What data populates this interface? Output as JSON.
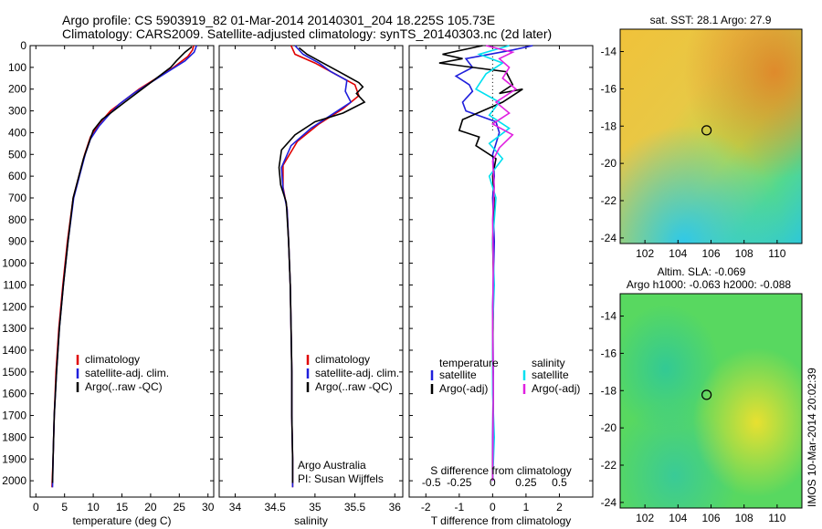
{
  "header": {
    "line1": "Argo profile: CS 5903919_82 01-Mar-2014 20140301_204 18.225S 105.73E",
    "line2": "Climatology: CARS2009. Satellite-adjusted climatology: synTS_20140303.nc (2d later)"
  },
  "side_stamp": "IMOS 10-Mar-2014 20:02:39",
  "colors": {
    "climatology": "#e00000",
    "satellite": "#1f1fdc",
    "argo": "#000000",
    "salinity_satellite": "#00e0f0",
    "salinity_argo": "#e020e0"
  },
  "chart_data": [
    {
      "type": "line",
      "id": "temperature",
      "xlabel": "temperature (deg C)",
      "xlim": [
        -1,
        31
      ],
      "xticks": [
        0,
        5,
        10,
        15,
        20,
        25,
        30
      ],
      "ylim": [
        0,
        2075
      ],
      "yticks": [
        0,
        100,
        200,
        300,
        400,
        500,
        600,
        700,
        800,
        900,
        1000,
        1100,
        1200,
        1300,
        1400,
        1500,
        1600,
        1700,
        1800,
        1900,
        2000
      ],
      "legend": [
        "climatology",
        "satellite-adj. clim.",
        "Argo(..raw -QC)"
      ],
      "series": [
        {
          "name": "climatology",
          "color": "climatology",
          "points": [
            [
              27.5,
              0
            ],
            [
              27.3,
              20
            ],
            [
              26.5,
              50
            ],
            [
              24,
              100
            ],
            [
              21,
              150
            ],
            [
              18,
              200
            ],
            [
              15,
              260
            ],
            [
              13,
              300
            ],
            [
              11,
              360
            ],
            [
              9.5,
              420
            ],
            [
              8.5,
              500
            ],
            [
              7.5,
              600
            ],
            [
              6.5,
              700
            ],
            [
              5.5,
              900
            ],
            [
              4.7,
              1100
            ],
            [
              4,
              1300
            ],
            [
              3.5,
              1500
            ],
            [
              3.2,
              1700
            ],
            [
              3,
              1900
            ],
            [
              2.8,
              2030
            ]
          ]
        },
        {
          "name": "satellite-adj. clim.",
          "color": "satellite",
          "points": [
            [
              28,
              0
            ],
            [
              27.6,
              30
            ],
            [
              26,
              70
            ],
            [
              23,
              120
            ],
            [
              20,
              170
            ],
            [
              17,
              220
            ],
            [
              14.5,
              270
            ],
            [
              13,
              310
            ],
            [
              11,
              370
            ],
            [
              9.5,
              430
            ],
            [
              8.6,
              500
            ],
            [
              7.6,
              600
            ],
            [
              6.6,
              700
            ],
            [
              5.6,
              900
            ],
            [
              4.8,
              1100
            ],
            [
              4.1,
              1300
            ],
            [
              3.6,
              1500
            ],
            [
              3.2,
              1700
            ],
            [
              3,
              1900
            ],
            [
              2.9,
              2030
            ]
          ]
        },
        {
          "name": "Argo(..raw -QC)",
          "color": "argo",
          "points": [
            [
              27.2,
              5
            ],
            [
              26,
              30
            ],
            [
              24.5,
              70
            ],
            [
              23.5,
              100
            ],
            [
              21,
              150
            ],
            [
              18.5,
              200
            ],
            [
              15.5,
              260
            ],
            [
              13.5,
              300
            ],
            [
              11.5,
              340
            ],
            [
              10,
              390
            ],
            [
              9.2,
              450
            ],
            [
              8.3,
              520
            ],
            [
              7.3,
              620
            ],
            [
              6.5,
              700
            ],
            [
              5.6,
              900
            ],
            [
              4.8,
              1100
            ],
            [
              4.1,
              1300
            ],
            [
              3.6,
              1500
            ],
            [
              3.2,
              1700
            ],
            [
              3,
              1900
            ],
            [
              2.9,
              2010
            ]
          ]
        }
      ]
    },
    {
      "type": "line",
      "id": "salinity",
      "xlabel": "salinity",
      "xlim": [
        33.8,
        36.1
      ],
      "xticks": [
        34,
        34.5,
        35,
        35.5,
        36
      ],
      "ylim": [
        0,
        2075
      ],
      "legend": [
        "climatology",
        "satellite-adj. clim.",
        "Argo(..raw -QC)"
      ],
      "annotation": [
        "Argo Australia",
        "PI: Susan Wijffels"
      ],
      "series": [
        {
          "name": "climatology",
          "color": "climatology",
          "points": [
            [
              34.7,
              0
            ],
            [
              34.75,
              40
            ],
            [
              35.0,
              80
            ],
            [
              35.25,
              130
            ],
            [
              35.5,
              180
            ],
            [
              35.55,
              230
            ],
            [
              35.35,
              290
            ],
            [
              35.05,
              360
            ],
            [
              34.78,
              440
            ],
            [
              34.6,
              550
            ],
            [
              34.6,
              650
            ],
            [
              34.65,
              750
            ],
            [
              34.67,
              900
            ],
            [
              34.69,
              1100
            ],
            [
              34.7,
              1300
            ],
            [
              34.71,
              1500
            ],
            [
              34.71,
              1700
            ],
            [
              34.72,
              1900
            ],
            [
              34.72,
              2030
            ]
          ]
        },
        {
          "name": "satellite-adj. clim.",
          "color": "satellite",
          "points": [
            [
              34.75,
              0
            ],
            [
              34.85,
              40
            ],
            [
              35.05,
              80
            ],
            [
              35.2,
              120
            ],
            [
              35.4,
              160
            ],
            [
              35.38,
              210
            ],
            [
              35.45,
              260
            ],
            [
              35.2,
              320
            ],
            [
              34.95,
              380
            ],
            [
              34.7,
              460
            ],
            [
              34.58,
              560
            ],
            [
              34.6,
              660
            ],
            [
              34.65,
              750
            ],
            [
              34.67,
              900
            ],
            [
              34.69,
              1100
            ],
            [
              34.7,
              1300
            ],
            [
              34.71,
              1500
            ],
            [
              34.71,
              1700
            ],
            [
              34.72,
              1900
            ],
            [
              34.72,
              2030
            ]
          ]
        },
        {
          "name": "Argo(..raw -QC)",
          "color": "argo",
          "points": [
            [
              34.8,
              10
            ],
            [
              34.9,
              40
            ],
            [
              35.1,
              80
            ],
            [
              35.3,
              120
            ],
            [
              35.55,
              170
            ],
            [
              35.6,
              190
            ],
            [
              35.52,
              220
            ],
            [
              35.62,
              260
            ],
            [
              35.35,
              310
            ],
            [
              35.0,
              350
            ],
            [
              34.75,
              410
            ],
            [
              34.58,
              480
            ],
            [
              34.55,
              560
            ],
            [
              34.57,
              640
            ],
            [
              34.64,
              720
            ],
            [
              34.67,
              900
            ],
            [
              34.69,
              1100
            ],
            [
              34.7,
              1300
            ],
            [
              34.71,
              1500
            ],
            [
              34.71,
              1700
            ],
            [
              34.72,
              1900
            ],
            [
              34.72,
              2010
            ]
          ]
        }
      ]
    },
    {
      "type": "line",
      "id": "difference",
      "xlabel": "T difference from climatology",
      "xlabel_top": "S difference from climatology",
      "xlim": [
        -2.5,
        3
      ],
      "xticks": [
        -2,
        -1,
        0,
        1,
        2
      ],
      "xticks_top": [
        "-0.5",
        "-0.25",
        "0",
        "0.25",
        "0.5"
      ],
      "ylim": [
        0,
        2075
      ],
      "legend_temperature_heading": "temperature",
      "legend_salinity_heading": "salinity",
      "legend": [
        "satellite",
        "Argo(-adj)",
        "satellite",
        "Argo(-adj)"
      ],
      "series": [
        {
          "name": "satellite",
          "group": "temperature",
          "color": "satellite",
          "points": [
            [
              1.2,
              0
            ],
            [
              0.6,
              20
            ],
            [
              -0.8,
              60
            ],
            [
              -0.6,
              100
            ],
            [
              -1.1,
              140
            ],
            [
              -0.7,
              180
            ],
            [
              -0.6,
              210
            ],
            [
              -0.9,
              260
            ],
            [
              -0.8,
              300
            ],
            [
              0.1,
              350
            ],
            [
              0.2,
              400
            ],
            [
              0.0,
              500
            ],
            [
              0.05,
              600
            ],
            [
              0.0,
              700
            ],
            [
              0.05,
              900
            ],
            [
              0.0,
              1200
            ],
            [
              0.02,
              1500
            ],
            [
              0.0,
              1800
            ],
            [
              0.0,
              2000
            ]
          ]
        },
        {
          "name": "Argo(-adj)",
          "group": "temperature",
          "color": "argo",
          "points": [
            [
              -0.3,
              0
            ],
            [
              -1.5,
              40
            ],
            [
              -0.9,
              60
            ],
            [
              -1.6,
              80
            ],
            [
              0.4,
              120
            ],
            [
              0.6,
              180
            ],
            [
              0.2,
              220
            ],
            [
              0.9,
              200
            ],
            [
              0.3,
              260
            ],
            [
              -0.9,
              340
            ],
            [
              -1.0,
              390
            ],
            [
              -0.4,
              420
            ],
            [
              -0.5,
              460
            ],
            [
              0.1,
              520
            ],
            [
              0.0,
              600
            ],
            [
              0.05,
              700
            ],
            [
              0.0,
              900
            ],
            [
              0.03,
              1100
            ],
            [
              0.0,
              1400
            ],
            [
              0.02,
              1700
            ],
            [
              0.0,
              2000
            ]
          ]
        },
        {
          "name": "satellite",
          "group": "salinity",
          "color": "salinity_satellite",
          "points": [
            [
              0.5,
              0
            ],
            [
              -0.4,
              40
            ],
            [
              0.3,
              80
            ],
            [
              -0.2,
              130
            ],
            [
              -0.5,
              200
            ],
            [
              0.2,
              260
            ],
            [
              -0.1,
              320
            ],
            [
              0.5,
              380
            ],
            [
              -0.1,
              450
            ],
            [
              0.3,
              520
            ],
            [
              -0.1,
              600
            ],
            [
              0.1,
              700
            ],
            [
              0.0,
              900
            ],
            [
              0.05,
              1100
            ],
            [
              0.0,
              1300
            ],
            [
              0.0,
              1600
            ],
            [
              0.05,
              1800
            ],
            [
              0.0,
              2000
            ]
          ]
        },
        {
          "name": "Argo(-adj)",
          "group": "salinity",
          "color": "salinity_argo",
          "points": [
            [
              -0.2,
              0
            ],
            [
              0.6,
              30
            ],
            [
              0.2,
              60
            ],
            [
              0.5,
              100
            ],
            [
              0.3,
              150
            ],
            [
              0.7,
              200
            ],
            [
              0.1,
              260
            ],
            [
              0.5,
              310
            ],
            [
              0.0,
              360
            ],
            [
              0.6,
              410
            ],
            [
              0.2,
              470
            ],
            [
              0.0,
              530
            ],
            [
              0.05,
              650
            ],
            [
              0.0,
              800
            ],
            [
              0.02,
              1000
            ],
            [
              0.0,
              1300
            ],
            [
              0.02,
              1600
            ],
            [
              0.0,
              2000
            ]
          ]
        }
      ]
    },
    {
      "type": "heatmap",
      "id": "sst-map",
      "title": "sat. SST: 28.1 Argo: 27.9",
      "xlim": [
        100.5,
        111.5
      ],
      "ylim": [
        -24.3,
        -12.8
      ],
      "xticks": [
        102,
        104,
        106,
        108,
        110
      ],
      "yticks": [
        -14,
        -16,
        -18,
        -20,
        -22,
        -24
      ],
      "marker": {
        "lon": 105.73,
        "lat": -18.225
      }
    },
    {
      "type": "heatmap",
      "id": "sla-map",
      "title": "Altim. SLA: -0.069",
      "subtitle": "Argo h1000: -0.063 h2000: -0.088",
      "xlim": [
        100.5,
        111.5
      ],
      "ylim": [
        -24.3,
        -12.8
      ],
      "xticks": [
        102,
        104,
        106,
        108,
        110
      ],
      "yticks": [
        -14,
        -16,
        -18,
        -20,
        -22,
        -24
      ],
      "marker": {
        "lon": 105.73,
        "lat": -18.225
      }
    }
  ]
}
